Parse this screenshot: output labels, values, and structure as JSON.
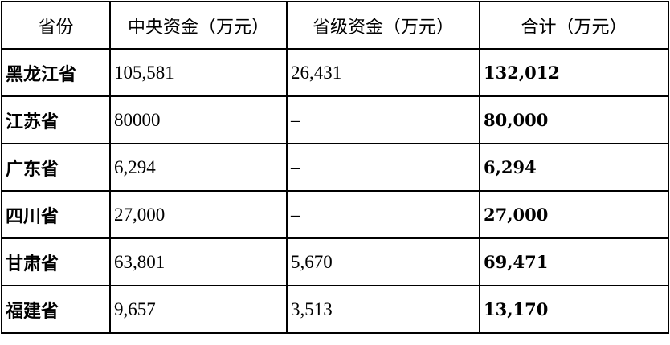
{
  "table": {
    "headers": [
      "省份",
      "中央资金（万元）",
      "省级资金（万元）",
      "合计（万元）"
    ],
    "rows": [
      [
        "黑龙江省",
        "105,581",
        "26,431",
        "132,012"
      ],
      [
        "江苏省",
        "80000",
        "–",
        "80,000"
      ],
      [
        "广东省",
        "6,294",
        "–",
        "6,294"
      ],
      [
        "四川省",
        "27,000",
        "–",
        "27,000"
      ],
      [
        "甘肃省",
        "63,801",
        "5,670",
        "69,471"
      ],
      [
        "福建省",
        "9,657",
        "3,513",
        "13,170"
      ]
    ]
  }
}
